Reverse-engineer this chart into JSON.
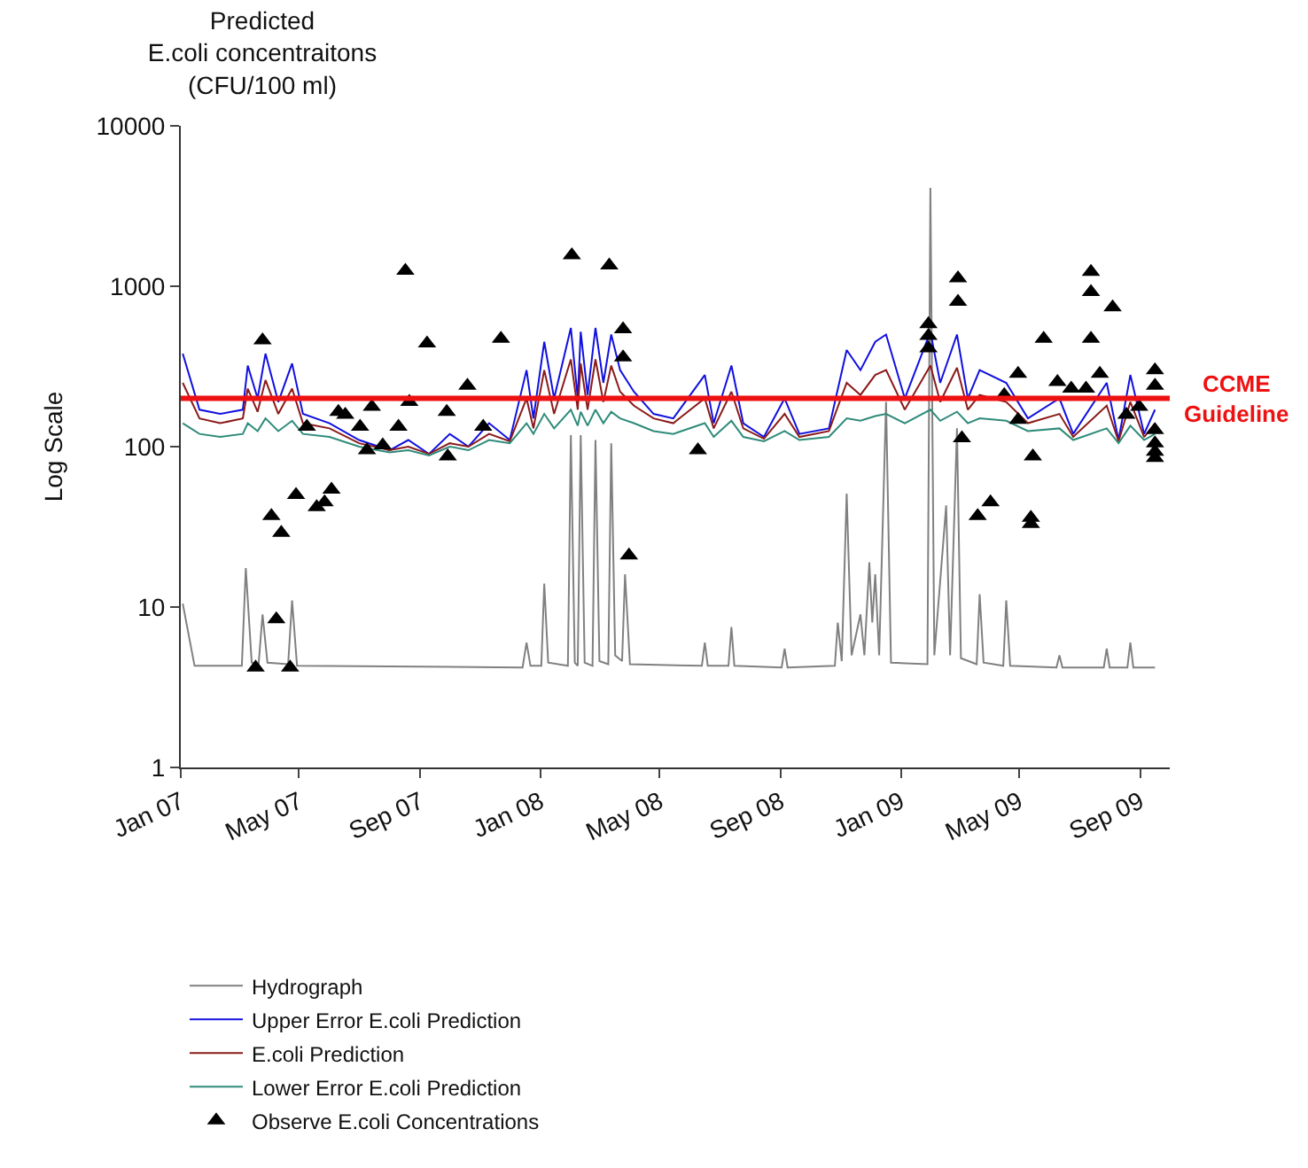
{
  "chart_data": {
    "type": "line",
    "title": "Predicted\nE.coli concentraitons\n(CFU/100 ml)",
    "ylabel": "Log Scale",
    "log": "y",
    "xlim": [
      "2007-01-01",
      "2009-10-01"
    ],
    "xticks": [
      {
        "value": "2007-01-01",
        "label": "Jan 07"
      },
      {
        "value": "2007-05-01",
        "label": "May 07"
      },
      {
        "value": "2007-09-01",
        "label": "Sep 07"
      },
      {
        "value": "2008-01-01",
        "label": "Jan 08"
      },
      {
        "value": "2008-05-01",
        "label": "May 08"
      },
      {
        "value": "2008-09-01",
        "label": "Sep 08"
      },
      {
        "value": "2009-01-01",
        "label": "Jan 09"
      },
      {
        "value": "2009-05-01",
        "label": "May 09"
      },
      {
        "value": "2009-09-01",
        "label": "Sep 09"
      }
    ],
    "ylim": [
      1,
      10000
    ],
    "yticks": [
      1,
      10,
      100,
      1000,
      10000
    ],
    "legend": "bottom left",
    "line_style": "solid",
    "x": [
      "2007-01-03",
      "2007-01-20",
      "2007-02-10",
      "2007-03-05",
      "2007-03-10",
      "2007-03-20",
      "2007-03-28",
      "2007-04-10",
      "2007-04-24",
      "2007-05-05",
      "2007-06-01",
      "2007-07-01",
      "2007-08-01",
      "2007-08-20",
      "2007-09-10",
      "2007-10-01",
      "2007-10-20",
      "2007-11-10",
      "2007-12-01",
      "2007-12-18",
      "2007-12-25",
      "2008-01-05",
      "2008-01-15",
      "2008-02-01",
      "2008-02-08",
      "2008-02-11",
      "2008-02-18",
      "2008-02-26",
      "2008-03-05",
      "2008-03-13",
      "2008-03-22",
      "2008-04-05",
      "2008-04-25",
      "2008-05-15",
      "2008-06-16",
      "2008-06-25",
      "2008-07-13",
      "2008-07-25",
      "2008-08-15",
      "2008-09-05",
      "2008-09-20",
      "2008-10-20",
      "2008-11-07",
      "2008-11-21",
      "2008-12-06",
      "2008-12-17",
      "2009-01-05",
      "2009-01-31",
      "2009-02-10",
      "2009-02-27",
      "2009-03-10",
      "2009-03-22",
      "2009-04-18",
      "2009-05-10",
      "2009-06-11",
      "2009-06-25",
      "2009-07-29",
      "2009-08-10",
      "2009-08-22",
      "2009-09-05",
      "2009-09-16"
    ],
    "series": [
      {
        "name": "Hydrograph",
        "color": "#808080",
        "marker": "none",
        "x": [
          "2007-01-03",
          "2007-01-15",
          "2007-01-25",
          "2007-03-04",
          "2007-03-08",
          "2007-03-14",
          "2007-03-21",
          "2007-03-25",
          "2007-03-30",
          "2007-04-20",
          "2007-04-24",
          "2007-04-29",
          "2007-12-14",
          "2007-12-18",
          "2007-12-22",
          "2008-01-02",
          "2008-01-05",
          "2008-01-09",
          "2008-01-29",
          "2008-02-01",
          "2008-02-05",
          "2008-02-08",
          "2008-02-11",
          "2008-02-15",
          "2008-02-23",
          "2008-02-26",
          "2008-03-01",
          "2008-03-10",
          "2008-03-13",
          "2008-03-17",
          "2008-03-24",
          "2008-03-27",
          "2008-04-01",
          "2008-06-13",
          "2008-06-16",
          "2008-06-19",
          "2008-07-10",
          "2008-07-13",
          "2008-07-16",
          "2008-09-02",
          "2008-09-05",
          "2008-09-08",
          "2008-10-26",
          "2008-10-29",
          "2008-11-02",
          "2008-11-07",
          "2008-11-12",
          "2008-11-21",
          "2008-11-25",
          "2008-11-30",
          "2008-12-03",
          "2008-12-06",
          "2008-12-10",
          "2008-12-17",
          "2008-12-22",
          "2009-01-28",
          "2009-01-31",
          "2009-02-04",
          "2009-02-16",
          "2009-02-20",
          "2009-02-27",
          "2009-03-03",
          "2009-03-19",
          "2009-03-22",
          "2009-03-26",
          "2009-04-15",
          "2009-04-18",
          "2009-04-22",
          "2009-06-08",
          "2009-06-11",
          "2009-06-14",
          "2009-07-26",
          "2009-07-29",
          "2009-08-01",
          "2009-08-19",
          "2009-08-22",
          "2009-08-25",
          "2009-09-16"
        ],
        "values": [
          10.5,
          4.3,
          4.3,
          4.3,
          17.5,
          4.5,
          4.4,
          9,
          4.5,
          4.4,
          11,
          4.3,
          4.2,
          6,
          4.3,
          4.3,
          14,
          4.5,
          4.3,
          118,
          4.5,
          4.3,
          118,
          4.5,
          4.3,
          110,
          4.6,
          4.4,
          105,
          5,
          4.6,
          16,
          4.4,
          4.3,
          6,
          4.3,
          4.3,
          7.5,
          4.3,
          4.2,
          5.5,
          4.2,
          4.3,
          8,
          4.6,
          51,
          5,
          9,
          5,
          19,
          8,
          16,
          5,
          190,
          4.5,
          4.4,
          4100,
          5,
          43,
          5,
          130,
          4.8,
          4.4,
          12,
          4.5,
          4.3,
          11,
          4.3,
          4.2,
          5,
          4.2,
          4.2,
          5.5,
          4.2,
          4.2,
          6,
          4.2,
          4.2
        ]
      },
      {
        "name": "Upper Error E.coli Prediction",
        "color": "#1010e0",
        "marker": "none",
        "values": [
          380,
          170,
          160,
          170,
          320,
          200,
          380,
          190,
          330,
          160,
          140,
          110,
          95,
          110,
          90,
          120,
          100,
          140,
          110,
          300,
          150,
          450,
          200,
          550,
          200,
          520,
          210,
          550,
          250,
          500,
          300,
          220,
          160,
          150,
          280,
          140,
          320,
          140,
          115,
          200,
          120,
          130,
          400,
          300,
          450,
          500,
          200,
          520,
          250,
          500,
          200,
          300,
          250,
          150,
          200,
          120,
          250,
          110,
          280,
          120,
          170
        ]
      },
      {
        "name": "E.coli Prediction",
        "color": "#8b1a1a",
        "marker": "none",
        "values": [
          250,
          150,
          140,
          150,
          230,
          165,
          260,
          160,
          230,
          140,
          130,
          105,
          95,
          100,
          90,
          105,
          100,
          120,
          108,
          200,
          130,
          300,
          160,
          350,
          170,
          330,
          170,
          350,
          190,
          320,
          220,
          180,
          150,
          140,
          200,
          130,
          220,
          130,
          112,
          160,
          115,
          125,
          250,
          210,
          280,
          300,
          170,
          320,
          190,
          310,
          170,
          210,
          190,
          140,
          160,
          115,
          180,
          108,
          190,
          115,
          140
        ]
      },
      {
        "name": "Lower Error E.coli Prediction",
        "color": "#2e8b7a",
        "marker": "none",
        "values": [
          140,
          120,
          115,
          120,
          140,
          125,
          150,
          125,
          145,
          120,
          115,
          100,
          92,
          95,
          88,
          100,
          95,
          110,
          105,
          140,
          120,
          160,
          130,
          170,
          135,
          165,
          135,
          170,
          140,
          165,
          150,
          140,
          125,
          120,
          140,
          115,
          145,
          115,
          108,
          125,
          110,
          115,
          150,
          145,
          155,
          160,
          140,
          170,
          145,
          165,
          140,
          150,
          145,
          125,
          130,
          110,
          130,
          105,
          135,
          110,
          120
        ]
      },
      {
        "name": "Observe E.coli Concentrations",
        "type": "scatter",
        "color": "#000000",
        "marker": "triangle",
        "x": [
          "2007-03-25",
          "2007-04-03",
          "2007-04-08",
          "2007-04-13",
          "2007-03-18",
          "2007-04-22",
          "2007-04-28",
          "2007-05-09",
          "2007-05-19",
          "2007-05-27",
          "2007-06-03",
          "2007-06-10",
          "2007-06-17",
          "2007-07-02",
          "2007-07-14",
          "2007-07-09",
          "2007-07-25",
          "2007-08-10",
          "2007-08-17",
          "2007-08-21",
          "2007-09-08",
          "2007-09-28",
          "2007-09-29",
          "2007-10-19",
          "2007-11-04",
          "2007-11-22",
          "2008-02-02",
          "2008-03-11",
          "2008-03-25",
          "2008-03-25",
          "2008-03-31",
          "2008-06-09",
          "2009-01-29",
          "2009-01-29",
          "2009-01-29",
          "2009-02-28",
          "2009-02-28",
          "2009-03-04",
          "2009-03-20",
          "2009-04-02",
          "2009-04-16",
          "2009-04-30",
          "2009-04-30",
          "2009-05-15",
          "2009-05-13",
          "2009-05-13",
          "2009-05-26",
          "2009-06-09",
          "2009-06-23",
          "2009-07-08",
          "2009-07-13",
          "2009-07-13",
          "2009-07-13",
          "2009-07-22",
          "2009-08-04",
          "2009-08-18",
          "2009-08-31",
          "2009-09-16",
          "2009-09-16",
          "2009-09-16",
          "2009-09-16",
          "2009-09-16",
          "2009-09-16"
        ],
        "values": [
          460,
          37,
          8.4,
          29,
          4.2,
          4.2,
          50,
          133,
          42,
          45,
          54,
          165,
          158,
          133,
          177,
          95,
          102,
          133,
          1250,
          190,
          440,
          165,
          87,
          240,
          133,
          470,
          1560,
          1350,
          540,
          360,
          21,
          95,
          580,
          490,
          410,
          1120,
          800,
          113,
          37,
          45,
          210,
          285,
          147,
          87,
          36,
          33,
          470,
          253,
          230,
          230,
          1230,
          920,
          470,
          285,
          740,
          158,
          177,
          300,
          240,
          127,
          105,
          93,
          85
        ]
      }
    ],
    "ref_lines": [
      {
        "axis": "y",
        "value": 200,
        "label": "CCME Guideline",
        "color": "#ee1111"
      }
    ]
  }
}
